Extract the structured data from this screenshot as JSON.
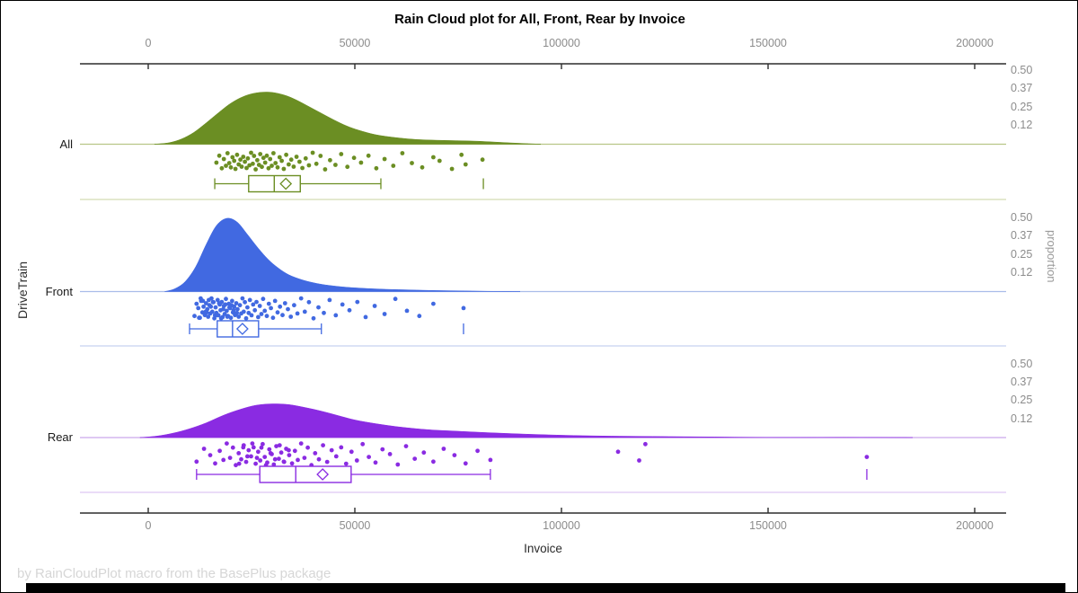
{
  "title": "Rain Cloud plot for All, Front, Rear by Invoice",
  "footnote": "by RainCloudPlot macro from the BasePlus package",
  "x_axis": {
    "title": "Invoice",
    "ticks": [
      {
        "value": 0,
        "label": "0"
      },
      {
        "value": 50000,
        "label": "50000"
      },
      {
        "value": 100000,
        "label": "100000"
      },
      {
        "value": 150000,
        "label": "150000"
      },
      {
        "value": 200000,
        "label": "200000"
      }
    ]
  },
  "y_axis": {
    "title": "DriveTrain",
    "categories": [
      "All",
      "Front",
      "Rear"
    ]
  },
  "y2_axis": {
    "title": "proportion",
    "ticks": [
      {
        "value": 0.5,
        "label": "0.50"
      },
      {
        "value": 0.375,
        "label": "0.37"
      },
      {
        "value": 0.25,
        "label": "0.25"
      },
      {
        "value": 0.125,
        "label": "0.12"
      }
    ]
  },
  "colors": {
    "axis": "#2d2d2d",
    "tick_label": "#8c8c8c",
    "background": "#ffffff",
    "footer_bar": "#000000"
  },
  "chart_data": {
    "type": "raincloud",
    "xlabel": "Invoice",
    "ylabel": "DriveTrain",
    "y2label": "proportion",
    "xlim": [
      -16500,
      207500
    ],
    "proportion_ticks": [
      0.125,
      0.25,
      0.375,
      0.5
    ],
    "groups": [
      {
        "name": "All",
        "color": "#6B8E23",
        "baseline_color": "#b8c687",
        "separator_color": "#d3dcb2",
        "density": {
          "x": [
            1500,
            5000,
            8000,
            11000,
            14000,
            17000,
            20000,
            23000,
            26000,
            29500,
            33000,
            36000,
            39000,
            42000,
            45000,
            48000,
            51000,
            55000,
            60000,
            65000,
            70000,
            75000,
            80000,
            85000,
            90000,
            95000
          ],
          "proportion": [
            0,
            0.01,
            0.035,
            0.08,
            0.145,
            0.215,
            0.28,
            0.325,
            0.35,
            0.355,
            0.335,
            0.3,
            0.255,
            0.21,
            0.165,
            0.125,
            0.095,
            0.065,
            0.045,
            0.032,
            0.027,
            0.024,
            0.02,
            0.013,
            0.006,
            0
          ]
        },
        "box": {
          "whisker_low": 16100,
          "q1": 24300,
          "median": 30500,
          "mean": 33300,
          "q3": 36800,
          "whisker_high": 56300,
          "outliers": [
            81100
          ]
        },
        "rain_x": [
          16500,
          17200,
          17800,
          18300,
          18800,
          19200,
          19600,
          20000,
          20400,
          20800,
          21100,
          21500,
          21900,
          22300,
          22600,
          23000,
          23400,
          23800,
          24100,
          24500,
          24900,
          25300,
          25600,
          26000,
          26400,
          26800,
          27100,
          27500,
          27900,
          28300,
          28700,
          29100,
          29500,
          29900,
          30300,
          30800,
          31300,
          31800,
          32300,
          32800,
          33400,
          34000,
          34600,
          35200,
          35900,
          36600,
          37300,
          38100,
          38900,
          39800,
          40700,
          41700,
          42800,
          44000,
          45300,
          46700,
          48200,
          49800,
          51500,
          53300,
          55200,
          57200,
          59300,
          61500,
          63800,
          66300,
          69000,
          70500,
          73500,
          75800,
          76800,
          80900
        ]
      },
      {
        "name": "Front",
        "color": "#4169E1",
        "baseline_color": "#a9bce9",
        "separator_color": "#c6d2f1",
        "density": {
          "x": [
            4000,
            6500,
            9000,
            11500,
            14000,
            16500,
            19000,
            21500,
            24000,
            26500,
            29000,
            31500,
            34000,
            37000,
            40000,
            43000,
            47000,
            51000,
            56000,
            62000,
            68000,
            75000,
            82000,
            90000
          ],
          "proportion": [
            0,
            0.02,
            0.07,
            0.17,
            0.32,
            0.45,
            0.5,
            0.475,
            0.39,
            0.3,
            0.22,
            0.16,
            0.115,
            0.082,
            0.06,
            0.045,
            0.032,
            0.024,
            0.017,
            0.012,
            0.008,
            0.005,
            0.002,
            0
          ]
        },
        "box": {
          "whisker_low": 10000,
          "q1": 16700,
          "median": 20400,
          "mean": 22800,
          "q3": 26700,
          "whisker_high": 41900,
          "outliers": [
            76300
          ]
        },
        "rain_x": [
          11200,
          11700,
          12100,
          12500,
          12800,
          13100,
          13400,
          13700,
          14000,
          14300,
          14500,
          14800,
          15000,
          15300,
          15500,
          15800,
          16000,
          16300,
          16500,
          16800,
          17000,
          17300,
          17500,
          17800,
          18000,
          18300,
          18500,
          18800,
          19000,
          19300,
          19500,
          19800,
          20000,
          20300,
          20500,
          20800,
          21000,
          21300,
          21600,
          21900,
          22200,
          22500,
          22800,
          23100,
          23400,
          23700,
          24000,
          24300,
          24600,
          25000,
          25400,
          25800,
          26200,
          26600,
          27000,
          27400,
          27800,
          28200,
          28700,
          29200,
          29700,
          30200,
          30700,
          31300,
          31900,
          32500,
          33100,
          33800,
          34500,
          35300,
          36100,
          37000,
          37900,
          38900,
          40000,
          41200,
          42500,
          43900,
          45400,
          47000,
          48700,
          50600,
          52600,
          54800,
          57200,
          59800,
          62600,
          65600,
          69000,
          76300,
          12300,
          13250,
          14150,
          15150,
          16150,
          17150,
          18150,
          19150,
          20150,
          21150,
          12700,
          13900,
          15650,
          17650,
          19650,
          21450,
          14650,
          16650,
          18650,
          20650
        ]
      },
      {
        "name": "Rear",
        "color": "#8A2BE2",
        "baseline_color": "#c9a7ec",
        "separator_color": "#ddc6f4",
        "density": {
          "x": [
            -2000,
            2000,
            6000,
            10000,
            14000,
            18000,
            22000,
            26000,
            30000,
            34000,
            38000,
            42000,
            46000,
            50000,
            55000,
            60000,
            65000,
            70000,
            76000,
            82000,
            88000,
            95000,
            103000,
            112000,
            120000,
            128000,
            137000,
            147000,
            158000,
            168000,
            176000,
            185000
          ],
          "proportion": [
            0,
            0.01,
            0.03,
            0.06,
            0.1,
            0.15,
            0.19,
            0.22,
            0.23,
            0.225,
            0.205,
            0.18,
            0.15,
            0.12,
            0.095,
            0.075,
            0.06,
            0.05,
            0.042,
            0.034,
            0.027,
            0.02,
            0.014,
            0.01,
            0.008,
            0.006,
            0.004,
            0.002,
            0.001,
            0.002,
            0.001,
            0
          ]
        },
        "box": {
          "whisker_low": 11700,
          "q1": 27000,
          "median": 35700,
          "mean": 42200,
          "q3": 49100,
          "whisker_high": 82800,
          "outliers": [
            173900
          ]
        },
        "rain_x": [
          11700,
          13500,
          15000,
          16200,
          17300,
          18200,
          19000,
          19800,
          20500,
          21200,
          21900,
          22500,
          23100,
          23700,
          24300,
          24900,
          25500,
          26000,
          26600,
          27100,
          27700,
          28200,
          28800,
          29300,
          29900,
          30400,
          31000,
          31600,
          32200,
          32800,
          33400,
          34100,
          34800,
          35500,
          36200,
          37000,
          37800,
          38600,
          39500,
          40400,
          41300,
          42300,
          43300,
          44400,
          45500,
          46700,
          47900,
          49200,
          50500,
          51900,
          53400,
          55000,
          56700,
          58500,
          60400,
          62400,
          64500,
          66700,
          69000,
          71500,
          74100,
          76800,
          79700,
          82800,
          25200,
          26300,
          27400,
          28500,
          29600,
          30700,
          31800,
          32900,
          34000,
          24000,
          23000,
          22000,
          113700,
          118800,
          120300,
          173900
        ]
      }
    ],
    "jitter_cycle": [
      0.15,
      -0.62,
      0.78,
      -0.25,
      0.5,
      -0.9,
      0.2,
      0.68,
      -0.45,
      -0.05,
      0.85,
      -0.72,
      0.35,
      -0.18,
      0.6,
      -0.5,
      0.05,
      0.75,
      -0.32,
      0.45,
      -0.95,
      0.28,
      -0.6,
      0.9,
      -0.12,
      0.4,
      -0.8,
      0.62,
      -0.38
    ]
  }
}
